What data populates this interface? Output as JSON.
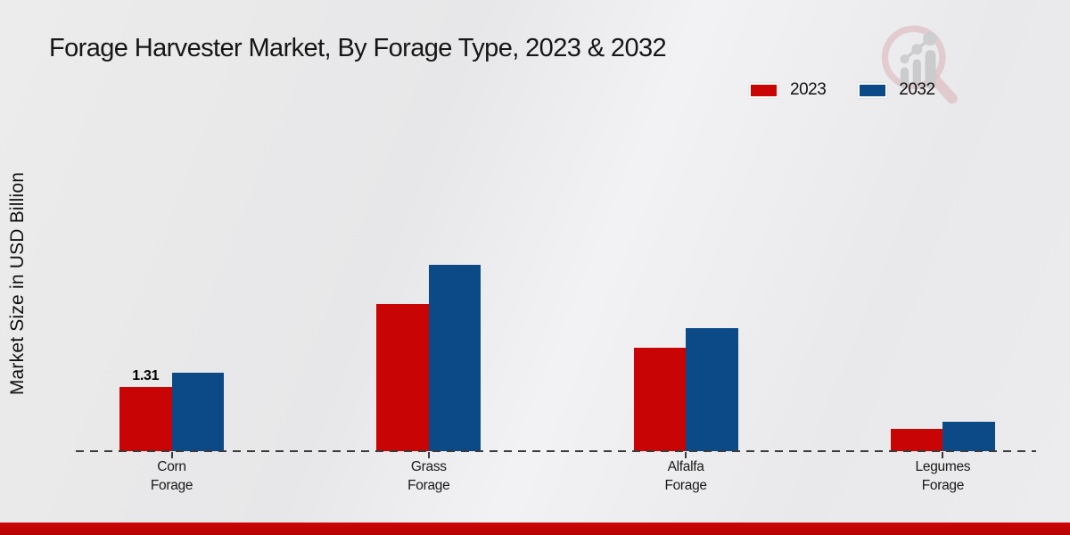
{
  "title": "Forage Harvester Market, By Forage Type, 2023 & 2032",
  "ylabel": "Market Size in USD Billion",
  "logo_icon": "magnifier-growth-chart-logo",
  "colors": {
    "series_2023": "#c90404",
    "series_2032": "#0b4a86",
    "bottom_band": "#bd0404",
    "baseline": "#3b3b3b",
    "background": "#eaeaec"
  },
  "chart_data": {
    "type": "bar",
    "categories": [
      "Corn Forage",
      "Grass Forage",
      "Alfalfa Forage",
      "Legumes Forage"
    ],
    "series": [
      {
        "name": "2023",
        "color": "#c90404",
        "values": [
          1.31,
          3.0,
          2.1,
          0.45
        ]
      },
      {
        "name": "2032",
        "color": "#0b4a86",
        "values": [
          1.6,
          3.8,
          2.5,
          0.6
        ]
      }
    ],
    "annotations": [
      {
        "text": "1.31",
        "series_index": 0,
        "category_index": 0
      }
    ],
    "title": "Forage Harvester Market, By Forage Type, 2023 & 2032",
    "xlabel": "",
    "ylabel": "Market Size in USD Billion",
    "ylim": [
      0,
      4.2
    ],
    "grid": false,
    "axis_line_style": "dashed",
    "legend_position": "top-right"
  }
}
